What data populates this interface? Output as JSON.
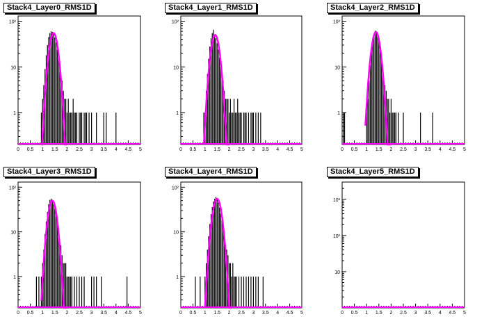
{
  "colors": {
    "histogram": "#000000",
    "fit": "#ff00ff",
    "frame": "#000000",
    "background": "#ffffff"
  },
  "chart_data": [
    {
      "type": "line",
      "title": "Stack4_Layer0_RMS1D",
      "yscale": "log",
      "xlim": [
        0,
        5
      ],
      "ylim": [
        0.2,
        130
      ],
      "xticks": [
        "0",
        "0.5",
        "1",
        "1.5",
        "2",
        "2.5",
        "3",
        "3.5",
        "4",
        "4.5",
        "5"
      ],
      "yticks": [
        {
          "value": 1,
          "label": "1"
        },
        {
          "value": 10,
          "label": "10"
        },
        {
          "value": 100,
          "label": "10²"
        }
      ],
      "series": [
        {
          "kind": "histogram",
          "x": [
            0.95,
            1.0,
            1.05,
            1.1,
            1.15,
            1.2,
            1.25,
            1.3,
            1.35,
            1.4,
            1.45,
            1.5,
            1.55,
            1.6,
            1.65,
            1.7,
            1.75,
            1.8,
            1.85,
            1.9,
            1.95,
            2.0,
            2.05,
            2.1,
            2.15,
            2.2,
            2.25,
            2.3,
            2.35,
            2.4,
            2.45,
            2.5,
            2.55,
            2.6,
            2.65,
            2.7,
            2.75,
            2.8,
            2.85,
            2.9,
            2.95,
            3.0,
            3.1,
            3.2,
            3.4,
            3.5,
            3.6,
            3.9,
            4.0
          ],
          "values": [
            1,
            2,
            4,
            9,
            18,
            30,
            45,
            55,
            60,
            58,
            52,
            44,
            34,
            24,
            16,
            10,
            7,
            5,
            3,
            2,
            2,
            1,
            2,
            1,
            1,
            1,
            2,
            1,
            1,
            1,
            0,
            1,
            1,
            1,
            0,
            1,
            1,
            1,
            0,
            1,
            0,
            1,
            0,
            1,
            0,
            1,
            1,
            0,
            1
          ]
        },
        {
          "kind": "fit",
          "mu": 1.45,
          "sigma": 0.14,
          "amp": 55,
          "xrange": [
            0.95,
            2.0
          ]
        }
      ]
    },
    {
      "type": "line",
      "title": "Stack4_Layer1_RMS1D",
      "yscale": "log",
      "xlim": [
        0,
        5
      ],
      "ylim": [
        0.2,
        130
      ],
      "xticks": [
        "0",
        "0.5",
        "1",
        "1.5",
        "2",
        "2.5",
        "3",
        "3.5",
        "4",
        "4.5",
        "5"
      ],
      "yticks": [
        {
          "value": 1,
          "label": "1"
        },
        {
          "value": 10,
          "label": "10"
        },
        {
          "value": 100,
          "label": "10²"
        }
      ],
      "series": [
        {
          "kind": "histogram",
          "x": [
            0.95,
            1.0,
            1.05,
            1.1,
            1.15,
            1.2,
            1.25,
            1.3,
            1.35,
            1.4,
            1.45,
            1.5,
            1.55,
            1.6,
            1.65,
            1.7,
            1.75,
            1.8,
            1.85,
            1.9,
            1.95,
            2.0,
            2.05,
            2.1,
            2.15,
            2.2,
            2.25,
            2.3,
            2.35,
            2.4,
            2.45,
            2.5,
            2.55,
            2.6,
            2.65,
            2.7,
            2.75,
            2.8,
            2.85,
            2.9,
            2.95,
            3.0,
            3.05,
            3.1,
            3.2,
            3.3
          ],
          "values": [
            1,
            1,
            3,
            7,
            15,
            28,
            42,
            55,
            65,
            50,
            42,
            33,
            24,
            16,
            10,
            7,
            5,
            3,
            2,
            2,
            2,
            1,
            2,
            1,
            1,
            2,
            1,
            1,
            2,
            1,
            1,
            1,
            0,
            1,
            1,
            1,
            0,
            1,
            0,
            1,
            1,
            1,
            0,
            1,
            1,
            1
          ]
        },
        {
          "kind": "fit",
          "mu": 1.42,
          "sigma": 0.14,
          "amp": 50,
          "xrange": [
            0.95,
            2.0
          ]
        }
      ]
    },
    {
      "type": "line",
      "title": "Stack4_Layer2_RMS1D",
      "yscale": "log",
      "xlim": [
        0,
        5
      ],
      "ylim": [
        0.2,
        130
      ],
      "xticks": [
        "0",
        "0.5",
        "1",
        "1.5",
        "2",
        "2.5",
        "3",
        "3.5",
        "4",
        "4.5",
        "5"
      ],
      "yticks": [
        {
          "value": 1,
          "label": "1"
        },
        {
          "value": 10,
          "label": "10"
        },
        {
          "value": 100,
          "label": "10²"
        }
      ],
      "series": [
        {
          "kind": "histogram",
          "x": [
            0.05,
            0.1,
            1.0,
            1.05,
            1.1,
            1.15,
            1.2,
            1.25,
            1.3,
            1.35,
            1.4,
            1.45,
            1.5,
            1.55,
            1.6,
            1.65,
            1.7,
            1.75,
            1.8,
            1.85,
            1.9,
            1.95,
            2.0,
            2.05,
            2.1,
            2.15,
            2.2,
            2.3,
            2.5,
            3.2,
            3.7
          ],
          "values": [
            1,
            1,
            1,
            2,
            5,
            11,
            22,
            36,
            50,
            62,
            60,
            48,
            36,
            24,
            15,
            9,
            6,
            4,
            3,
            2,
            2,
            1,
            2,
            1,
            1,
            1,
            1,
            1,
            1,
            1,
            1
          ]
        },
        {
          "kind": "fit",
          "mu": 1.38,
          "sigma": 0.14,
          "amp": 58,
          "xrange": [
            0.95,
            2.0
          ]
        }
      ]
    },
    {
      "type": "line",
      "title": "Stack4_Layer3_RMS1D",
      "yscale": "log",
      "xlim": [
        0,
        5
      ],
      "ylim": [
        0.2,
        130
      ],
      "xticks": [
        "0",
        "0.5",
        "1",
        "1.5",
        "2",
        "2.5",
        "3",
        "3.5",
        "4",
        "4.5",
        "5"
      ],
      "yticks": [
        {
          "value": 1,
          "label": "1"
        },
        {
          "value": 10,
          "label": "10"
        },
        {
          "value": 100,
          "label": "10²"
        }
      ],
      "series": [
        {
          "kind": "histogram",
          "x": [
            0.75,
            0.85,
            0.95,
            1.0,
            1.05,
            1.1,
            1.15,
            1.2,
            1.25,
            1.3,
            1.35,
            1.4,
            1.45,
            1.5,
            1.55,
            1.6,
            1.65,
            1.7,
            1.75,
            1.8,
            1.85,
            1.9,
            1.95,
            2.0,
            2.05,
            2.1,
            2.15,
            2.2,
            2.3,
            2.4,
            2.5,
            2.6,
            2.7,
            3.0,
            3.1,
            3.2,
            3.4,
            4.45
          ],
          "values": [
            1,
            1,
            1,
            2,
            4,
            9,
            17,
            28,
            42,
            52,
            55,
            50,
            42,
            33,
            24,
            16,
            10,
            7,
            5,
            3,
            2,
            2,
            2,
            1,
            1,
            1,
            1,
            1,
            1,
            1,
            1,
            1,
            1,
            1,
            1,
            1,
            1,
            1
          ]
        },
        {
          "kind": "fit",
          "mu": 1.4,
          "sigma": 0.14,
          "amp": 50,
          "xrange": [
            0.95,
            2.0
          ]
        }
      ]
    },
    {
      "type": "line",
      "title": "Stack4_Layer4_RMS1D",
      "yscale": "log",
      "xlim": [
        0,
        5
      ],
      "ylim": [
        0.2,
        130
      ],
      "xticks": [
        "0",
        "0.5",
        "1",
        "1.5",
        "2",
        "2.5",
        "3",
        "3.5",
        "4",
        "4.5",
        "5"
      ],
      "yticks": [
        {
          "value": 1,
          "label": "1"
        },
        {
          "value": 10,
          "label": "10"
        },
        {
          "value": 100,
          "label": "10²"
        }
      ],
      "series": [
        {
          "kind": "histogram",
          "x": [
            0.6,
            0.8,
            1.0,
            1.05,
            1.1,
            1.15,
            1.2,
            1.25,
            1.3,
            1.35,
            1.4,
            1.45,
            1.5,
            1.55,
            1.6,
            1.65,
            1.7,
            1.75,
            1.8,
            1.85,
            1.9,
            1.95,
            2.0,
            2.05,
            2.1,
            2.15,
            2.2,
            2.25,
            2.3,
            2.4,
            2.5,
            2.6,
            2.7,
            2.8,
            2.9,
            3.0,
            3.1,
            3.2,
            3.4
          ],
          "values": [
            1,
            1,
            1,
            2,
            4,
            8,
            15,
            25,
            36,
            48,
            55,
            60,
            55,
            45,
            35,
            26,
            18,
            12,
            8,
            5,
            4,
            3,
            2,
            2,
            1,
            2,
            1,
            1,
            1,
            1,
            1,
            1,
            1,
            1,
            1,
            1,
            1,
            1,
            1
          ]
        },
        {
          "kind": "fit",
          "mu": 1.5,
          "sigma": 0.15,
          "amp": 55,
          "xrange": [
            1.0,
            2.1
          ]
        }
      ]
    },
    {
      "type": "line",
      "title": "Stack4_Layer5_RMS1D",
      "yscale": "log",
      "xlim": [
        0,
        5
      ],
      "ylim": [
        1,
        3000
      ],
      "xticks": [
        "0",
        "0.5",
        "1",
        "1.5",
        "2",
        "2.5",
        "3",
        "3.5",
        "4",
        "4.5",
        "5"
      ],
      "yticks": [
        {
          "value": 10,
          "label": "10"
        },
        {
          "value": 100,
          "label": "10²"
        },
        {
          "value": 1000,
          "label": "10³"
        }
      ],
      "series": []
    }
  ]
}
